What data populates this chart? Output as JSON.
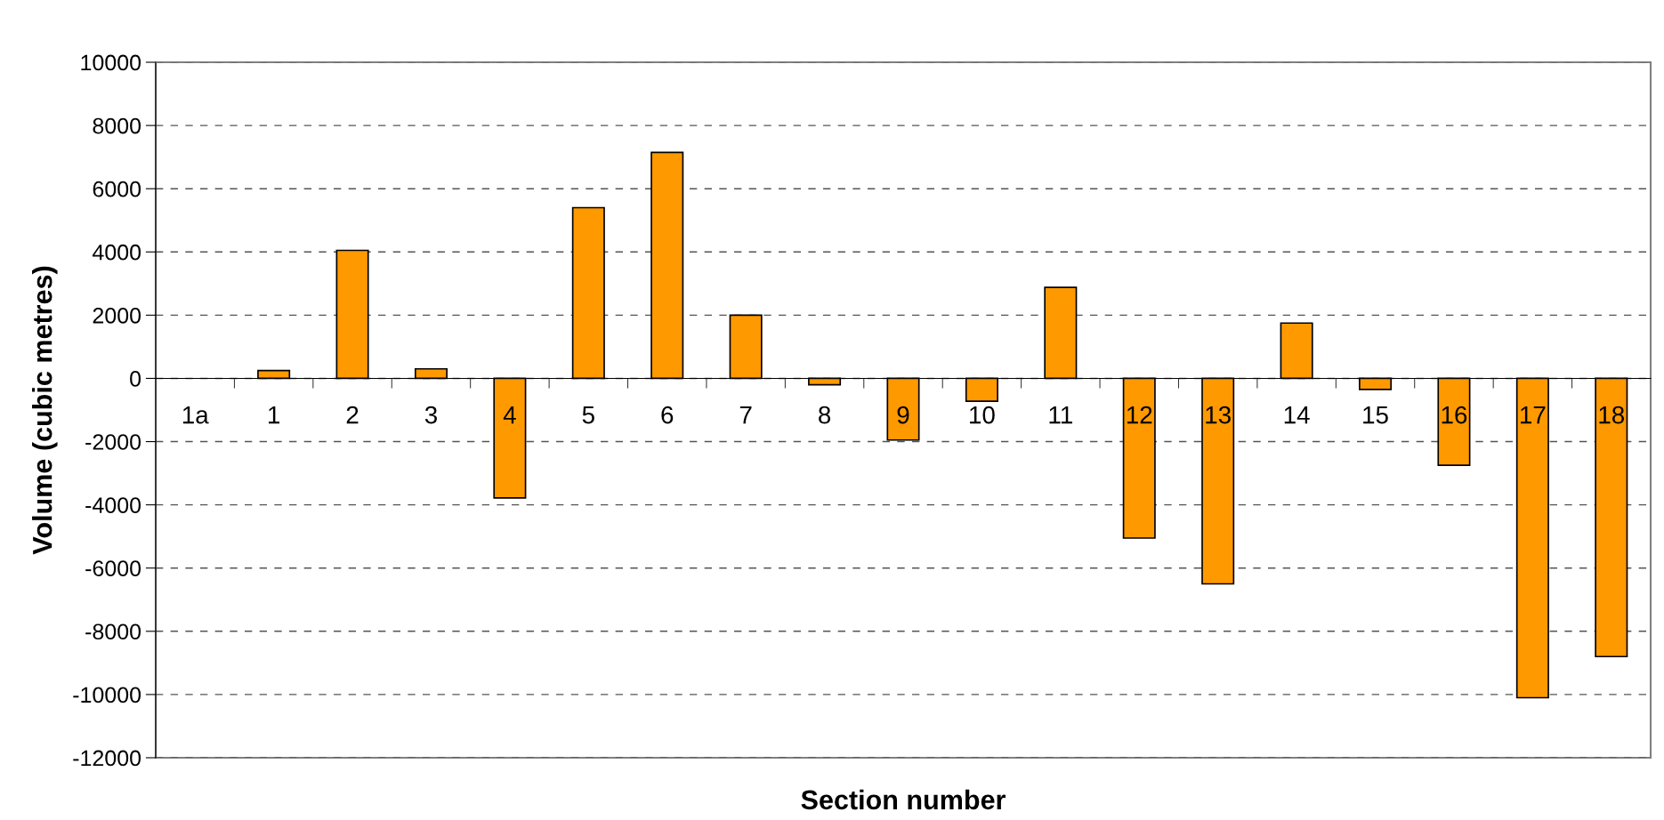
{
  "chart_data": {
    "type": "bar",
    "xlabel": "Section number",
    "ylabel": "Volume (cubic metres)",
    "categories": [
      "1a",
      "1",
      "2",
      "3",
      "4",
      "5",
      "6",
      "7",
      "8",
      "9",
      "10",
      "11",
      "12",
      "13",
      "14",
      "15",
      "16",
      "17",
      "18"
    ],
    "values": [
      null,
      250,
      4050,
      300,
      -3780,
      5400,
      7150,
      2000,
      -200,
      -1950,
      -720,
      2880,
      -5050,
      -6500,
      1750,
      -350,
      -2750,
      -10100,
      -8800
    ],
    "color": "#ff9900",
    "ylim": [
      -12000,
      10000
    ],
    "yticks": [
      -12000,
      -10000,
      -8000,
      -6000,
      -4000,
      -2000,
      0,
      2000,
      4000,
      6000,
      8000,
      10000
    ],
    "grid": "y",
    "legend": false
  }
}
